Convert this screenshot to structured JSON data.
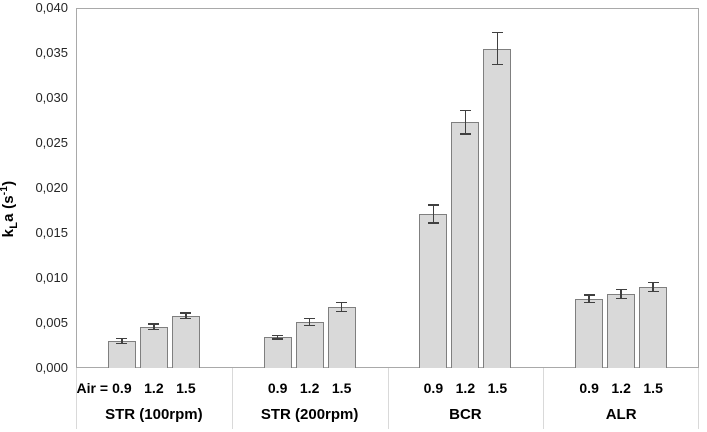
{
  "figure": {
    "air_prefix": "Air =",
    "ylabel_parts": {
      "base": "k",
      "subscript": "L",
      "middle": "a (s",
      "superscript": "-1",
      "suffix": ")"
    },
    "colors": {
      "bar_fill": "#d9d9d9",
      "bar_border": "#7f7f7f",
      "error_bar": "#404040",
      "plot_border": "#a9a9a9",
      "group_divider": "#d9d9d9",
      "text": "#000000"
    }
  },
  "chart_data": {
    "type": "bar",
    "title": "",
    "xlabel": "",
    "ylabel": "kLa (s-1)",
    "ylim": [
      0,
      0.04
    ],
    "ytick_step": 0.005,
    "ytick_labels": [
      "0,000",
      "0,005",
      "0,010",
      "0,015",
      "0,020",
      "0,025",
      "0,030",
      "0,035",
      "0,040"
    ],
    "decimal_separator_axis": "comma",
    "grid": false,
    "legend": "none",
    "error_bars": true,
    "subcategory_label": "Air =",
    "groups": [
      {
        "label": "STR (100rpm)",
        "air": [
          "0.9",
          "1.2",
          "1.5"
        ],
        "values": [
          0.003,
          0.0046,
          0.0058
        ],
        "errors": [
          0.0003,
          0.0003,
          0.0003
        ]
      },
      {
        "label": "STR (200rpm)",
        "air": [
          "0.9",
          "1.2",
          "1.5"
        ],
        "values": [
          0.0034,
          0.0051,
          0.0068
        ],
        "errors": [
          0.0002,
          0.0004,
          0.0005
        ]
      },
      {
        "label": "BCR",
        "air": [
          "0.9",
          "1.2",
          "1.5"
        ],
        "values": [
          0.0171,
          0.0273,
          0.0355
        ],
        "errors": [
          0.001,
          0.0013,
          0.0018
        ]
      },
      {
        "label": "ALR",
        "air": [
          "0.9",
          "1.2",
          "1.5"
        ],
        "values": [
          0.0077,
          0.0082,
          0.009
        ],
        "errors": [
          0.0004,
          0.0005,
          0.0005
        ]
      }
    ]
  }
}
